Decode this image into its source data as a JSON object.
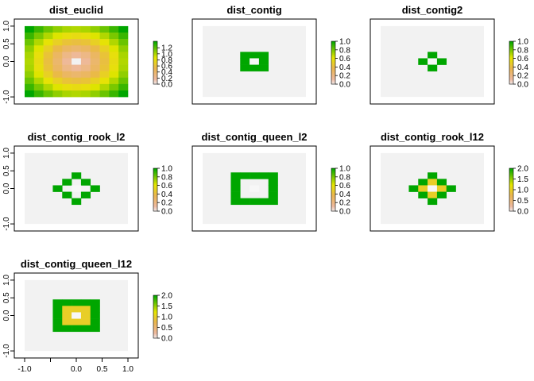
{
  "chart_data": [
    {
      "type": "heatmap",
      "title": "dist_euclid",
      "pattern": "euclid",
      "grid": 11,
      "legend": {
        "ticks": [
          "0.0",
          "0.2",
          "0.4",
          "0.6",
          "0.8",
          "1.0",
          "1.2"
        ],
        "max": 1.414,
        "values": [
          0,
          0.2,
          0.4,
          0.6,
          0.8,
          1.0,
          1.2
        ]
      },
      "xaxis": false,
      "yaxis": true
    },
    {
      "type": "heatmap",
      "title": "dist_contig",
      "pattern": "contig",
      "grid": 11,
      "legend": {
        "ticks": [
          "0.0",
          "0.2",
          "0.4",
          "0.6",
          "0.8",
          "1.0"
        ],
        "max": 1.0,
        "values": [
          0,
          0.2,
          0.4,
          0.6,
          0.8,
          1.0
        ]
      },
      "xaxis": false,
      "yaxis": false
    },
    {
      "type": "heatmap",
      "title": "dist_contig2",
      "pattern": "contig2",
      "grid": 11,
      "legend": {
        "ticks": [
          "0.0",
          "0.2",
          "0.4",
          "0.6",
          "0.8",
          "1.0"
        ],
        "max": 1.0,
        "values": [
          0,
          0.2,
          0.4,
          0.6,
          0.8,
          1.0
        ]
      },
      "xaxis": false,
      "yaxis": false
    },
    {
      "type": "heatmap",
      "title": "dist_contig_rook_l2",
      "pattern": "rook_l2",
      "grid": 11,
      "legend": {
        "ticks": [
          "0.0",
          "0.2",
          "0.4",
          "0.6",
          "0.8",
          "1.0"
        ],
        "max": 1.0,
        "values": [
          0,
          0.2,
          0.4,
          0.6,
          0.8,
          1.0
        ]
      },
      "xaxis": false,
      "yaxis": true
    },
    {
      "type": "heatmap",
      "title": "dist_contig_queen_l2",
      "pattern": "queen_l2",
      "grid": 11,
      "legend": {
        "ticks": [
          "0.0",
          "0.2",
          "0.4",
          "0.6",
          "0.8",
          "1.0"
        ],
        "max": 1.0,
        "values": [
          0,
          0.2,
          0.4,
          0.6,
          0.8,
          1.0
        ]
      },
      "xaxis": false,
      "yaxis": false
    },
    {
      "type": "heatmap",
      "title": "dist_contig_rook_l12",
      "pattern": "rook_l12",
      "grid": 11,
      "legend": {
        "ticks": [
          "0.0",
          "0.5",
          "1.0",
          "1.5",
          "2.0"
        ],
        "max": 2.0,
        "values": [
          0,
          0.5,
          1.0,
          1.5,
          2.0
        ]
      },
      "xaxis": false,
      "yaxis": false
    },
    {
      "type": "heatmap",
      "title": "dist_contig_queen_l12",
      "pattern": "queen_l12",
      "grid": 11,
      "legend": {
        "ticks": [
          "0.0",
          "0.5",
          "1.0",
          "1.5",
          "2.0"
        ],
        "max": 2.0,
        "values": [
          0,
          0.5,
          1.0,
          1.5,
          2.0
        ]
      },
      "xaxis": true,
      "yaxis": true
    }
  ],
  "axis": {
    "xrange": [
      -1.2,
      1.2
    ],
    "yrange": [
      -1.2,
      1.2
    ],
    "y_ticks": [
      "-1.0",
      "0.0",
      "0.5",
      "1.0"
    ],
    "y_tick_values": [
      -1.0,
      0.0,
      0.5,
      1.0
    ],
    "x_ticks": [
      "-1.0",
      "0.0",
      "0.5",
      "1.0"
    ],
    "x_tick_values": [
      -1.0,
      0.0,
      0.5,
      1.0
    ],
    "x_minor_ticks": [
      -0.5
    ]
  },
  "colors": {
    "background_cell": "#f2f2f2",
    "na_cell": "#f2f2f2",
    "terrain": [
      "#00a600",
      "#e6e600",
      "#eab64e",
      "#eeb99f",
      "#f2f2f2"
    ]
  }
}
